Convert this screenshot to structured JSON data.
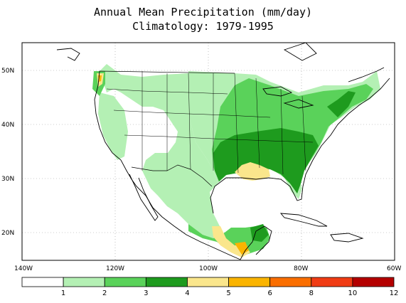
{
  "title_line1": "Annual Mean Precipitation (mm/day)",
  "title_line2": "Climatology: 1979-1995",
  "map": {
    "lon_range": [
      -140,
      -60
    ],
    "lat_range": [
      15,
      55
    ],
    "lat_labels": [
      "50N",
      "40N",
      "30N",
      "20N"
    ],
    "lon_labels": [
      "140W",
      "120W",
      "100W",
      "80W",
      "60W"
    ],
    "gridlines": true
  },
  "colorbar": {
    "levels": [
      "1",
      "2",
      "3",
      "4",
      "5",
      "6",
      "8",
      "10",
      "12"
    ],
    "colors": [
      "#ffffff",
      "#b4f0b4",
      "#5ad25a",
      "#1e9b1e",
      "#fae68c",
      "#fab400",
      "#fa6e00",
      "#f03c14",
      "#b40000"
    ]
  }
}
